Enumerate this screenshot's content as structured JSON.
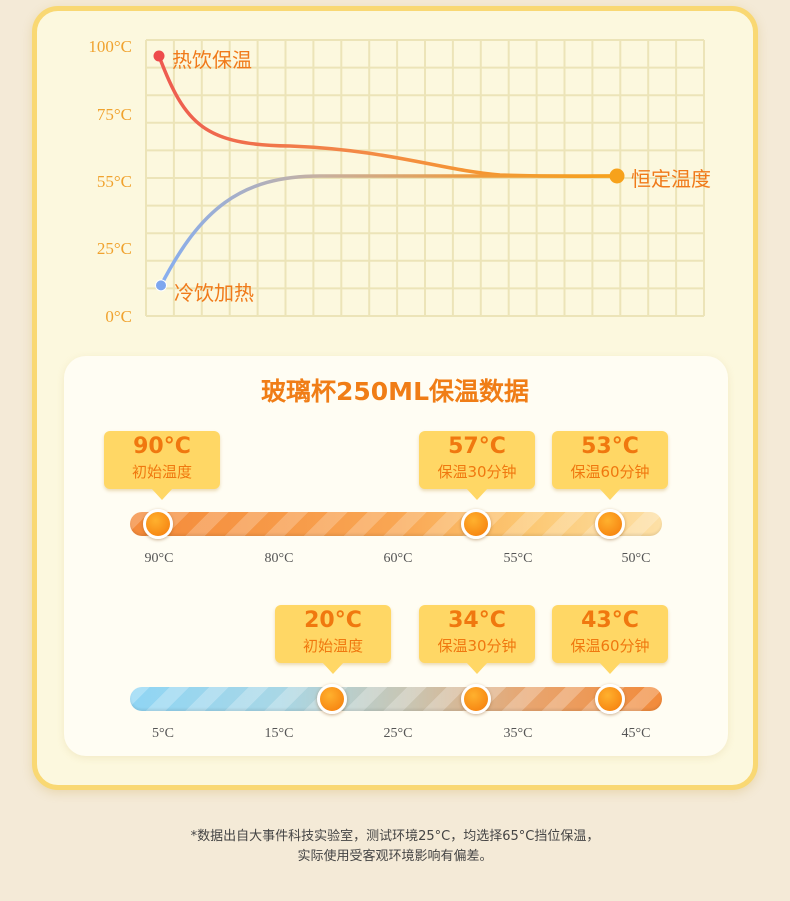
{
  "chart_data": [
    {
      "type": "line",
      "y_ticks": [
        "100°C",
        "75°C",
        "55°C",
        "25°C",
        "0°C"
      ],
      "ylim": [
        0,
        100
      ],
      "grid": true,
      "series": [
        {
          "name": "热饮保温",
          "color": "#ee6a4c",
          "start_y": 100,
          "end_y": 55
        },
        {
          "name": "冷饮加热",
          "color": "#8fb2ec",
          "start_y": 12,
          "end_y": 55
        }
      ],
      "end_label": "恒定温度",
      "end_color": "#f7a21b"
    }
  ],
  "panel": {
    "title": "玻璃杯250ML保温数据",
    "hot": {
      "tags": [
        {
          "value": "90°C",
          "label": "初始温度"
        },
        {
          "value": "57°C",
          "label": "保温30分钟"
        },
        {
          "value": "53°C",
          "label": "保温60分钟"
        }
      ],
      "ticks": [
        "90°C",
        "80°C",
        "60°C",
        "55°C",
        "50°C"
      ]
    },
    "cold": {
      "tags": [
        {
          "value": "20°C",
          "label": "初始温度"
        },
        {
          "value": "34°C",
          "label": "保温30分钟"
        },
        {
          "value": "43°C",
          "label": "保温60分钟"
        }
      ],
      "ticks": [
        "5°C",
        "15°C",
        "25°C",
        "35°C",
        "45°C"
      ]
    }
  },
  "footnote": {
    "line1": "*数据出自大事件科技实验室，测试环境25°C，均选择65°C挡位保温，",
    "line2": "实际使用受客观环境影响有偏差。"
  }
}
